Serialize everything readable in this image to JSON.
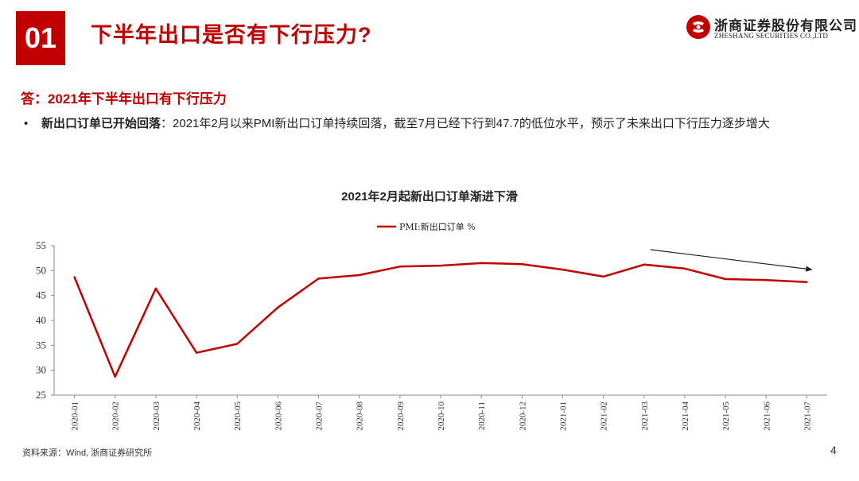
{
  "header": {
    "section_number": "01",
    "title": "下半年出口是否有下行压力?",
    "logo_cn": "浙商证券股份有限公司",
    "logo_en": "ZHESHANG SECURITIES CO.,LTD"
  },
  "answer": "答：2021年下半年出口有下行压力",
  "bullet": {
    "marker": "•",
    "bold": "新出口订单已开始回落",
    "text": "：2021年2月以来PMI新出口订单持续回落，截至7月已经下行到47.7的低位水平，预示了未来出口下行压力逐步增大"
  },
  "source": "资料来源：Wind, 浙商证券研究所",
  "page_number": "4",
  "colors": {
    "accent": "#c00000",
    "line": "#c00000",
    "arrow": "#222222"
  },
  "chart_data": {
    "type": "line",
    "title": "2021年2月起新出口订单渐进下滑",
    "categories": [
      "2020-01",
      "2020-02",
      "2020-03",
      "2020-04",
      "2020-05",
      "2020-06",
      "2020-07",
      "2020-08",
      "2020-09",
      "2020-10",
      "2020-11",
      "2020-12",
      "2021-01",
      "2021-02",
      "2021-03",
      "2021-04",
      "2021-05",
      "2021-06",
      "2021-07"
    ],
    "series": [
      {
        "name": "PMI:新出口订单 %",
        "values": [
          48.7,
          28.7,
          46.4,
          33.5,
          35.3,
          42.6,
          48.4,
          49.1,
          50.8,
          51.0,
          51.5,
          51.3,
          50.2,
          48.8,
          51.2,
          50.4,
          48.3,
          48.1,
          47.7
        ]
      }
    ],
    "ylim": [
      25,
      55
    ],
    "yticks": [
      25,
      30,
      35,
      40,
      45,
      50,
      55
    ],
    "grid": false,
    "legend": "top-center",
    "annotation": "arrow"
  }
}
